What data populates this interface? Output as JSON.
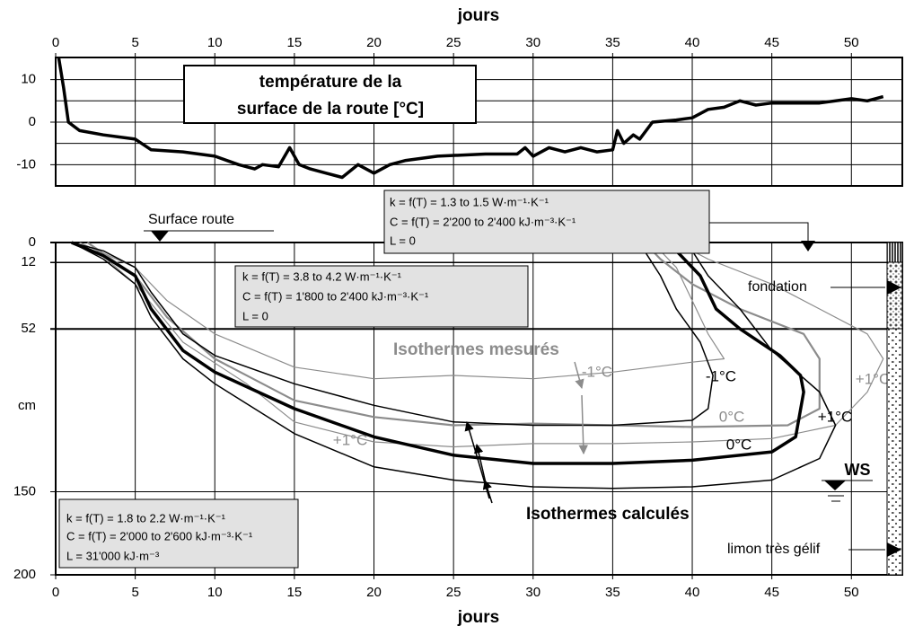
{
  "chart_data": [
    {
      "type": "line",
      "title": [
        "température de la",
        "surface de la route  [°C]"
      ],
      "xlabel": "jours",
      "xlim": [
        0,
        53.2
      ],
      "xticks": [
        0,
        5,
        10,
        15,
        20,
        25,
        30,
        35,
        40,
        45,
        50
      ],
      "ylim": [
        -15,
        15.2
      ],
      "yticks": [
        -10,
        0,
        10
      ],
      "yminor": [
        -5,
        5
      ],
      "grid": true,
      "color": "#000000",
      "x": [
        0.2,
        0.5,
        0.8,
        1.5,
        3,
        5,
        6,
        8,
        10,
        11.5,
        12.5,
        13,
        14,
        14.7,
        15.3,
        16,
        17,
        18,
        19,
        20,
        21,
        22,
        24,
        27,
        29,
        29.5,
        30,
        31,
        32,
        33,
        34,
        35,
        35.3,
        35.7,
        36.3,
        36.7,
        37.5,
        39,
        40,
        41,
        42,
        43,
        44,
        45,
        48,
        50,
        51,
        52
      ],
      "values": [
        15,
        8,
        0,
        -2,
        -3,
        -4,
        -6.5,
        -7,
        -8,
        -10,
        -11,
        -10,
        -10.5,
        -6,
        -10,
        -11,
        -12,
        -13,
        -10,
        -12,
        -10,
        -9,
        -8,
        -7.5,
        -7.5,
        -6,
        -8,
        -6,
        -7,
        -6,
        -7,
        -6.5,
        -2,
        -5,
        -3,
        -4,
        0,
        0.5,
        1,
        3,
        3.5,
        5,
        4,
        4.5,
        4.5,
        5.5,
        5,
        6
      ]
    },
    {
      "type": "isotherm",
      "xlabel": "jours",
      "ylabel": "cm",
      "yinvert": true,
      "xlim": [
        0,
        53.2
      ],
      "xticks": [
        0,
        5,
        10,
        15,
        20,
        25,
        30,
        35,
        40,
        45,
        50
      ],
      "ylim": [
        0,
        200
      ],
      "yticks": [
        0,
        12,
        52,
        150,
        200
      ],
      "grid": true,
      "series": [
        {
          "name": "-1°C",
          "group": "Isothermes mesurés",
          "color": "#8c8c8c",
          "line_width": 1.2,
          "x": [
            1.5,
            5,
            7,
            10,
            15,
            20,
            25,
            30,
            35,
            40,
            42,
            41,
            40,
            39,
            38
          ],
          "values": [
            0,
            15,
            35,
            55,
            75,
            82,
            80,
            82,
            78,
            72,
            70,
            55,
            35,
            15,
            5
          ]
        },
        {
          "name": "0°C",
          "group": "Isothermes mesurés",
          "color": "#8c8c8c",
          "line_width": 2.2,
          "x": [
            2,
            5,
            7,
            10,
            15,
            20,
            25,
            30,
            35,
            40,
            46,
            48,
            48,
            47,
            43,
            40,
            38,
            37
          ],
          "values": [
            0,
            20,
            45,
            70,
            95,
            105,
            110,
            109,
            110,
            111,
            110,
            100,
            70,
            55,
            40,
            25,
            10,
            0
          ]
        },
        {
          "name": "+1°C",
          "group": "Isothermes mesurés",
          "color": "#8c8c8c",
          "line_width": 1.2,
          "x": [
            2,
            5,
            8,
            12,
            15,
            20,
            25,
            30,
            35,
            40,
            45,
            49,
            51,
            52,
            51,
            48,
            45,
            41,
            39
          ],
          "values": [
            0,
            25,
            60,
            85,
            108,
            120,
            123,
            121,
            121,
            120,
            118,
            110,
            90,
            70,
            55,
            40,
            25,
            10,
            0
          ]
        },
        {
          "name": "-1°C",
          "group": "Isothermes calculés",
          "color": "#000000",
          "line_width": 1.5,
          "x": [
            1,
            3,
            5,
            6,
            8,
            10,
            15,
            20,
            25,
            30,
            35,
            40,
            41,
            41.3,
            40.5,
            39,
            38,
            37,
            36.5
          ],
          "values": [
            0,
            5,
            15,
            30,
            55,
            68,
            85,
            98,
            108,
            110,
            110,
            107,
            100,
            80,
            60,
            40,
            20,
            5,
            0
          ]
        },
        {
          "name": "0°C",
          "group": "Isothermes calculés",
          "color": "#000000",
          "line_width": 3.5,
          "x": [
            1,
            3,
            5,
            6,
            8,
            10,
            15,
            20,
            25,
            30,
            35,
            40,
            45,
            46.5,
            47,
            46.8,
            45.5,
            43,
            41.5,
            40.5,
            39,
            37.5
          ],
          "values": [
            0,
            8,
            20,
            40,
            65,
            78,
            100,
            117,
            128,
            133,
            133,
            131,
            126,
            117,
            90,
            80,
            68,
            52,
            40,
            20,
            5,
            0
          ]
        },
        {
          "name": "+1°C",
          "group": "Isothermes calculés",
          "color": "#000000",
          "line_width": 1.5,
          "x": [
            1,
            3,
            5,
            6,
            8,
            10,
            15,
            20,
            25,
            30,
            35,
            40,
            45,
            48,
            49,
            48,
            45,
            43,
            41,
            40,
            39
          ],
          "values": [
            0,
            10,
            25,
            45,
            70,
            85,
            115,
            135,
            143,
            147,
            148,
            147,
            143,
            130,
            110,
            90,
            65,
            40,
            20,
            5,
            0
          ]
        }
      ],
      "layers": [
        [
          "k = f(T) = 1.3 to 1.5 W·m⁻¹·K⁻¹",
          "C = f(T) = 2'200 to 2'400 kJ·m⁻³·K⁻¹",
          "L = 0"
        ],
        [
          "k = f(T) = 3.8 to 4.2 W·m⁻¹·K⁻¹",
          "C = f(T) = 1'800 to 2'400 kJ·m⁻³·K⁻¹",
          "L = 0"
        ],
        [
          "k = f(T) = 1.8 to 2.2 W·m⁻¹·K⁻¹",
          "C = f(T) = 2'000 to 2'600 kJ·m⁻³·K⁻¹",
          "L = 31'000 kJ·m⁻³"
        ]
      ],
      "annotations": {
        "surface": "Surface route",
        "fondation": "fondation",
        "limon": "limon très gélif",
        "ws": "WS",
        "measured": "Isothermes mesurés",
        "calculated": "Isothermes calculés"
      }
    }
  ]
}
